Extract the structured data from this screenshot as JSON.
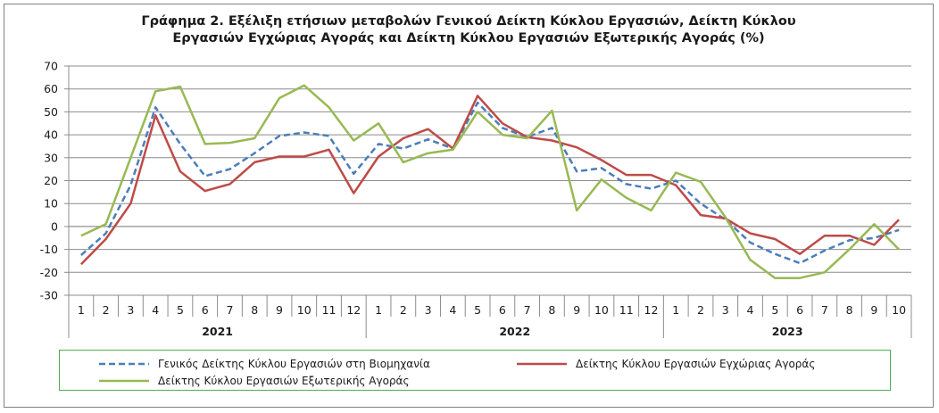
{
  "title_line1": "Γράφημα 2. Εξέλιξη ετήσιων μεταβολών Γενικού Δείκτη Κύκλου Εργασιών,  Δείκτη Κύκλου",
  "title_line2": "Εργασιών Εγχώριας Αγοράς και Δείκτη Κύκλου Εργασιών Εξωτερικής Αγοράς (%)",
  "chart_data": {
    "type": "line",
    "ylim": [
      -30,
      70
    ],
    "yticks": [
      70,
      60,
      50,
      40,
      30,
      20,
      10,
      0,
      -10,
      -20,
      -30
    ],
    "grid": true,
    "legend_position": "bottom",
    "categories": [
      "1",
      "2",
      "3",
      "4",
      "5",
      "6",
      "7",
      "8",
      "9",
      "10",
      "11",
      "12",
      "1",
      "2",
      "3",
      "4",
      "5",
      "6",
      "7",
      "8",
      "9",
      "10",
      "11",
      "12",
      "1",
      "2",
      "3",
      "4",
      "5",
      "6",
      "7",
      "8",
      "9",
      "10"
    ],
    "groups": [
      {
        "label": "2021",
        "count": 12
      },
      {
        "label": "2022",
        "count": 12
      },
      {
        "label": "2023",
        "count": 10
      }
    ],
    "series": [
      {
        "name": "Γενικός Δείκτης Κύκλου Εργασιών στη Βιομηχανία",
        "color": "#4a7ebb",
        "dash": true,
        "values": [
          -12.5,
          -3,
          18,
          52,
          36,
          22,
          25,
          32,
          39.5,
          41,
          39.5,
          23,
          36,
          34,
          38,
          34,
          54,
          43,
          39,
          43,
          24,
          25.5,
          18.5,
          16.5,
          20,
          10,
          3,
          -7,
          -12,
          -16,
          -10.5,
          -6,
          -5,
          -1.5
        ]
      },
      {
        "name": "Δείκτης Κύκλου Εργασιών Εγχώριας Αγοράς",
        "color": "#be4b48",
        "dash": false,
        "values": [
          -16.5,
          -5.5,
          10,
          48.5,
          24,
          15.5,
          18.5,
          28,
          30.5,
          30.5,
          33.5,
          14.5,
          30.5,
          38.5,
          42.5,
          34,
          57,
          45,
          39,
          37.5,
          34.5,
          29,
          22.5,
          22.5,
          18,
          5,
          3.5,
          -3,
          -5.5,
          -12,
          -4,
          -4,
          -8,
          3
        ]
      },
      {
        "name": "Δείκτης Κύκλου Εργασιών Εξωτερικής Αγοράς",
        "color": "#98b954",
        "dash": false,
        "values": [
          -4,
          1,
          30,
          59,
          61,
          36,
          36.5,
          38.5,
          56,
          61.5,
          52,
          37.5,
          45,
          28,
          32,
          33.5,
          50,
          40,
          38.5,
          50.5,
          7,
          20.5,
          12.5,
          7,
          23.5,
          19.5,
          4,
          -14.5,
          -22.5,
          -22.5,
          -20,
          -10,
          1,
          -10
        ]
      }
    ]
  }
}
